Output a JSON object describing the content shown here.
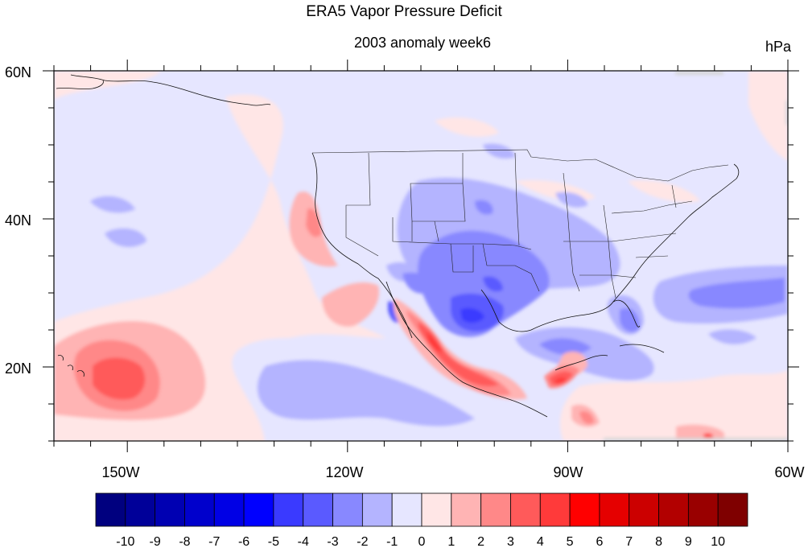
{
  "title": "ERA5 Vapor Pressure Deficit",
  "subtitle": "2003 anomaly week6",
  "units": "hPa",
  "map": {
    "lon_range": [
      -160,
      -60
    ],
    "lat_range": [
      10,
      60
    ],
    "lat_labels": [
      "60N",
      "40N",
      "20N"
    ],
    "lon_labels": [
      "150W",
      "120W",
      "90W",
      "60W"
    ],
    "lat_ticks": [
      60,
      40,
      20
    ],
    "lon_ticks": [
      -150,
      -120,
      -90,
      -60
    ]
  },
  "colorbar": {
    "levels": [
      "-10",
      "-9",
      "-8",
      "-7",
      "-6",
      "-5",
      "-4",
      "-3",
      "-2",
      "-1",
      "0",
      "1",
      "2",
      "3",
      "4",
      "5",
      "6",
      "7",
      "8",
      "9",
      "10"
    ],
    "colors": [
      "#00007f",
      "#000099",
      "#0000b2",
      "#0000cc",
      "#0000e5",
      "#0000ff",
      "#3a3aff",
      "#5a5aff",
      "#8888ff",
      "#b4b4ff",
      "#e6e6ff",
      "#ffe6e6",
      "#ffb4b4",
      "#ff8888",
      "#ff5a5a",
      "#ff3a3a",
      "#ff0000",
      "#e50000",
      "#cc0000",
      "#b20000",
      "#990000",
      "#7f0000"
    ]
  },
  "anomaly_colors": {
    "background": "#e6e6ff",
    "weak_pos": "#ffe6e6",
    "pos_1": "#ffb4b4",
    "pos_2": "#ff8888",
    "pos_3": "#ff5a5a",
    "pos_4": "#ff3a3a",
    "neg_1": "#b4b4ff",
    "neg_2": "#8888ff",
    "neg_3": "#5a5aff",
    "neg_4": "#3a3aff",
    "missing": "#d6d6d6"
  }
}
